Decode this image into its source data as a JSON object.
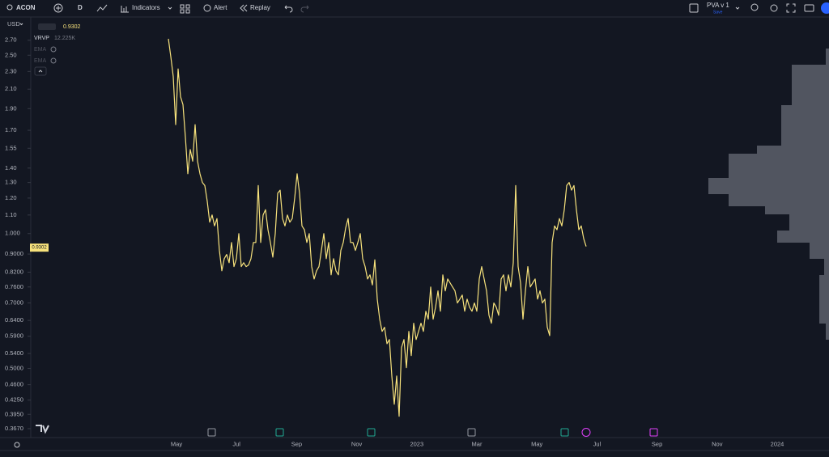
{
  "toolbar": {
    "symbol": "ACON",
    "interval": "D",
    "indicators": "Indicators",
    "alert": "Alert",
    "replay": "Replay",
    "layout_name": "PVA v 1",
    "save_status": "Save"
  },
  "legend": {
    "indicator": "VRVP",
    "indicator_value": "12.225K",
    "ema_1": "EMA",
    "ema_2": "EMA"
  },
  "chart_data": {
    "type": "line",
    "y_axis_unit": "USD",
    "color": "#f7e27c",
    "log_scale": true,
    "last_value": 0.9302,
    "ylim": [
      0.352,
      3.03
    ],
    "yticks": [
      {
        "value": 2.7,
        "label": "2.70"
      },
      {
        "value": 2.5,
        "label": "2.50"
      },
      {
        "value": 2.3,
        "label": "2.30"
      },
      {
        "value": 2.1,
        "label": "2.10"
      },
      {
        "value": 1.9,
        "label": "1.90"
      },
      {
        "value": 1.7,
        "label": "1.70"
      },
      1.55,
      {
        "value": 1.4,
        "label": "1.40"
      },
      {
        "value": 1.3,
        "label": "1.30"
      },
      {
        "value": 1.2,
        "label": "1.20"
      },
      {
        "value": 1.1,
        "label": "1.10"
      },
      {
        "value": 1,
        "label": "1.000"
      },
      {
        "value": 0.9,
        "label": "0.9000"
      },
      {
        "value": 0.82,
        "label": "0.8200"
      },
      {
        "value": 0.76,
        "label": "0.7600"
      },
      {
        "value": 0.7,
        "label": "0.7000"
      },
      {
        "value": 0.64,
        "label": "0.6400"
      },
      {
        "value": 0.59,
        "label": "0.5900"
      },
      {
        "value": 0.54,
        "label": "0.5400"
      },
      {
        "value": 0.5,
        "label": "0.5000"
      },
      {
        "value": 0.46,
        "label": "0.4600"
      },
      {
        "value": 0.425,
        "label": "0.4250"
      },
      {
        "value": 0.395,
        "label": "0.3950"
      },
      {
        "value": 0.367,
        "label": "0.3670"
      }
    ],
    "x_labels": [
      "May",
      "Jul",
      "Sep",
      "Nov",
      "2023",
      "Mar",
      "May",
      "Jul",
      "Sep",
      "Nov",
      "2024"
    ],
    "values": [
      2.72,
      2.48,
      2.24,
      1.75,
      2.33,
      2.02,
      1.94,
      1.64,
      1.36,
      1.54,
      1.45,
      1.75,
      1.45,
      1.36,
      1.3,
      1.28,
      1.18,
      1.06,
      1.1,
      1.04,
      1.08,
      0.917,
      0.826,
      0.879,
      0.898,
      0.861,
      0.955,
      0.844,
      0.879,
      1.0,
      0.844,
      0.861,
      0.844,
      0.851,
      0.879,
      0.955,
      0.955,
      1.28,
      0.955,
      1.1,
      1.13,
      1.02,
      0.955,
      0.886,
      1.0,
      1.23,
      1.25,
      1.08,
      1.04,
      1.1,
      1.06,
      1.08,
      1.2,
      1.36,
      1.23,
      1.04,
      1.02,
      0.955,
      1.0,
      0.844,
      0.792,
      0.826,
      0.844,
      0.917,
      1.0,
      0.879,
      0.955,
      0.809,
      0.879,
      0.826,
      0.809,
      0.917,
      0.955,
      1.03,
      1.08,
      0.955,
      0.955,
      0.917,
      0.955,
      1.0,
      0.879,
      0.844,
      0.792,
      0.809,
      0.768,
      0.874,
      0.714,
      0.644,
      0.605,
      0.618,
      0.568,
      0.58,
      0.481,
      0.416,
      0.481,
      0.391,
      0.557,
      0.58,
      0.502,
      0.605,
      0.534,
      0.631,
      0.58,
      0.605,
      0.631,
      0.605,
      0.671,
      0.644,
      0.76,
      0.644,
      0.685,
      0.745,
      0.671,
      0.809,
      0.745,
      0.792,
      0.776,
      0.76,
      0.745,
      0.7,
      0.714,
      0.729,
      0.671,
      0.714,
      0.685,
      0.671,
      0.7,
      0.671,
      0.792,
      0.844,
      0.792,
      0.745,
      0.657,
      0.631,
      0.7,
      0.685,
      0.657,
      0.792,
      0.809,
      0.745,
      0.809,
      0.76,
      0.861,
      1.28,
      0.844,
      0.776,
      0.644,
      0.745,
      0.844,
      0.76,
      0.776,
      0.792,
      0.714,
      0.745,
      0.7,
      0.714,
      0.618,
      0.592,
      0.955,
      1.04,
      1.02,
      1.08,
      1.04,
      1.13,
      1.28,
      1.3,
      1.25,
      1.28,
      1.13,
      1.02,
      1.04,
      0.974,
      0.936
    ]
  }
}
